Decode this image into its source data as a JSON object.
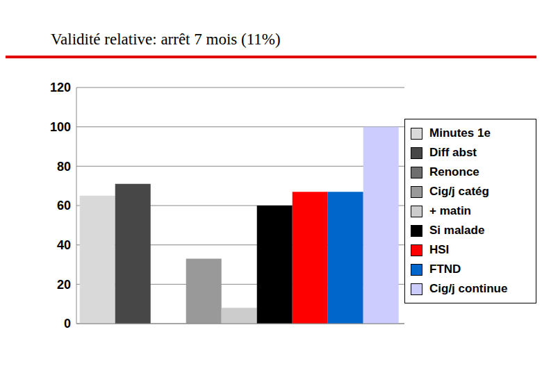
{
  "chart_data": {
    "type": "bar",
    "title": "Validité relative: arrêt 7 mois (11%)",
    "categories": [
      null
    ],
    "series": [
      {
        "name": "Minutes 1e",
        "color": "#d9d9d9",
        "values": [
          65
        ]
      },
      {
        "name": "Diff abst",
        "color": "#474747",
        "values": [
          71
        ]
      },
      {
        "name": "Renonce",
        "color": "#6e6e6e",
        "values": [
          0
        ]
      },
      {
        "name": "Cig/j catég",
        "color": "#999999",
        "values": [
          33
        ]
      },
      {
        "name": "+ matin",
        "color": "#cccccc",
        "values": [
          8
        ]
      },
      {
        "name": "Si malade",
        "color": "#000000",
        "values": [
          60
        ]
      },
      {
        "name": "HSI",
        "color": "#ff0000",
        "values": [
          67
        ]
      },
      {
        "name": "FTND",
        "color": "#0066cc",
        "values": [
          67
        ]
      },
      {
        "name": "Cig/j continue",
        "color": "#ccccff",
        "values": [
          100
        ]
      }
    ],
    "ylim": [
      0,
      120
    ],
    "yticks": [
      0,
      20,
      40,
      60,
      80,
      100,
      120
    ],
    "grid": true,
    "legend": "right",
    "tick_labels": "y"
  }
}
